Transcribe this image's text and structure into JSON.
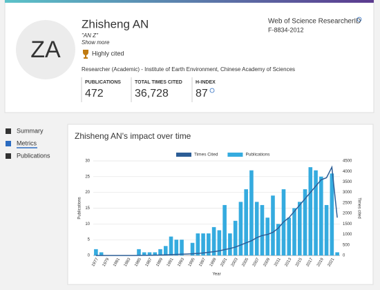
{
  "profile": {
    "initials": "ZA",
    "name": "Zhisheng AN",
    "alias": "\"AN Z\"",
    "show_more": "Show more",
    "badge": "Highly cited",
    "affiliation": "Researcher (Academic) - Institute of Earth Environment, Chinese Academy of Sciences",
    "rid_label": "Web of Science ResearcherID",
    "rid": "F-8834-2012",
    "stats": [
      {
        "label": "PUBLICATIONS",
        "value": "472"
      },
      {
        "label": "TOTAL TIMES CITED",
        "value": "36,728"
      },
      {
        "label": "H-INDEX",
        "value": "87"
      }
    ]
  },
  "nav": [
    "Summary",
    "Metrics",
    "Publications"
  ],
  "chart_data": {
    "type": "bar",
    "title": "Zhisheng AN's impact over time",
    "categories": [
      "1977",
      null,
      "1979",
      null,
      "1981",
      null,
      "1983",
      null,
      "1985",
      null,
      "1987",
      null,
      "1989",
      null,
      "1991",
      null,
      "1993",
      null,
      "1995",
      null,
      "1997",
      null,
      "1999",
      null,
      "2001",
      null,
      "2003",
      null,
      "2005",
      null,
      "2007",
      null,
      "2009",
      null,
      "2011",
      null,
      "2013",
      null,
      "2015",
      null,
      "2017",
      null,
      "2019",
      null,
      "2021",
      null
    ],
    "series": [
      {
        "name": "Times Cited",
        "color": "#2c5d96",
        "type": "line",
        "axis": "y2",
        "values": [
          0,
          0,
          0,
          0,
          0,
          0,
          0,
          0,
          5,
          10,
          10,
          15,
          20,
          30,
          40,
          50,
          60,
          70,
          80,
          100,
          120,
          150,
          180,
          220,
          280,
          330,
          400,
          500,
          600,
          700,
          850,
          950,
          1000,
          1100,
          1300,
          1600,
          1800,
          2100,
          2400,
          2700,
          3000,
          3300,
          3600,
          3700,
          4200,
          1800
        ]
      },
      {
        "name": "Publications",
        "color": "#35abdf",
        "values": [
          2,
          1,
          0,
          0,
          0,
          0,
          0,
          0,
          2,
          1,
          1,
          1,
          2,
          3,
          6,
          5,
          5,
          0,
          4,
          7,
          7,
          7,
          9,
          8,
          16,
          7,
          11,
          17,
          21,
          27,
          17,
          16,
          12,
          19,
          10,
          21,
          12,
          15,
          17,
          21,
          28,
          27,
          25,
          16,
          26,
          1
        ]
      }
    ],
    "ylabel": "Publications",
    "y2label": "Times cited",
    "xlabel": "Year",
    "ylim": [
      0,
      30
    ],
    "yticks": [
      0,
      5,
      10,
      15,
      20,
      25,
      30
    ],
    "y2lim": [
      0,
      4500
    ],
    "y2ticks": [
      0,
      500,
      1000,
      1500,
      2000,
      2500,
      3000,
      3500,
      4000,
      4500
    ],
    "grid": true,
    "legend": "top"
  }
}
